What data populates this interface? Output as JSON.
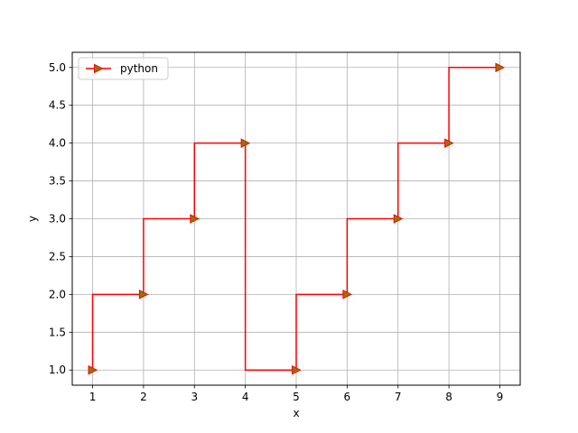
{
  "chart_data": {
    "type": "line",
    "drawstyle": "steps-pre",
    "x": [
      1,
      2,
      3,
      4,
      5,
      6,
      7,
      8,
      9
    ],
    "series": [
      {
        "name": "python",
        "values": [
          1.0,
          2.0,
          3.0,
          4.0,
          1.0,
          2.0,
          3.0,
          4.0,
          5.0
        ],
        "color": "#ff0000",
        "marker": "triangle-right",
        "marker_face_color": "#808000"
      }
    ],
    "title": "",
    "xlabel": "x",
    "ylabel": "y",
    "xlim": [
      0.6,
      9.4
    ],
    "ylim": [
      0.8,
      5.2
    ],
    "xticks": [
      "1",
      "2",
      "3",
      "4",
      "5",
      "6",
      "7",
      "8",
      "9"
    ],
    "yticks": [
      "1.0",
      "1.5",
      "2.0",
      "2.5",
      "3.0",
      "3.5",
      "4.0",
      "4.5",
      "5.0"
    ],
    "grid": true,
    "legend": "upper-left"
  }
}
